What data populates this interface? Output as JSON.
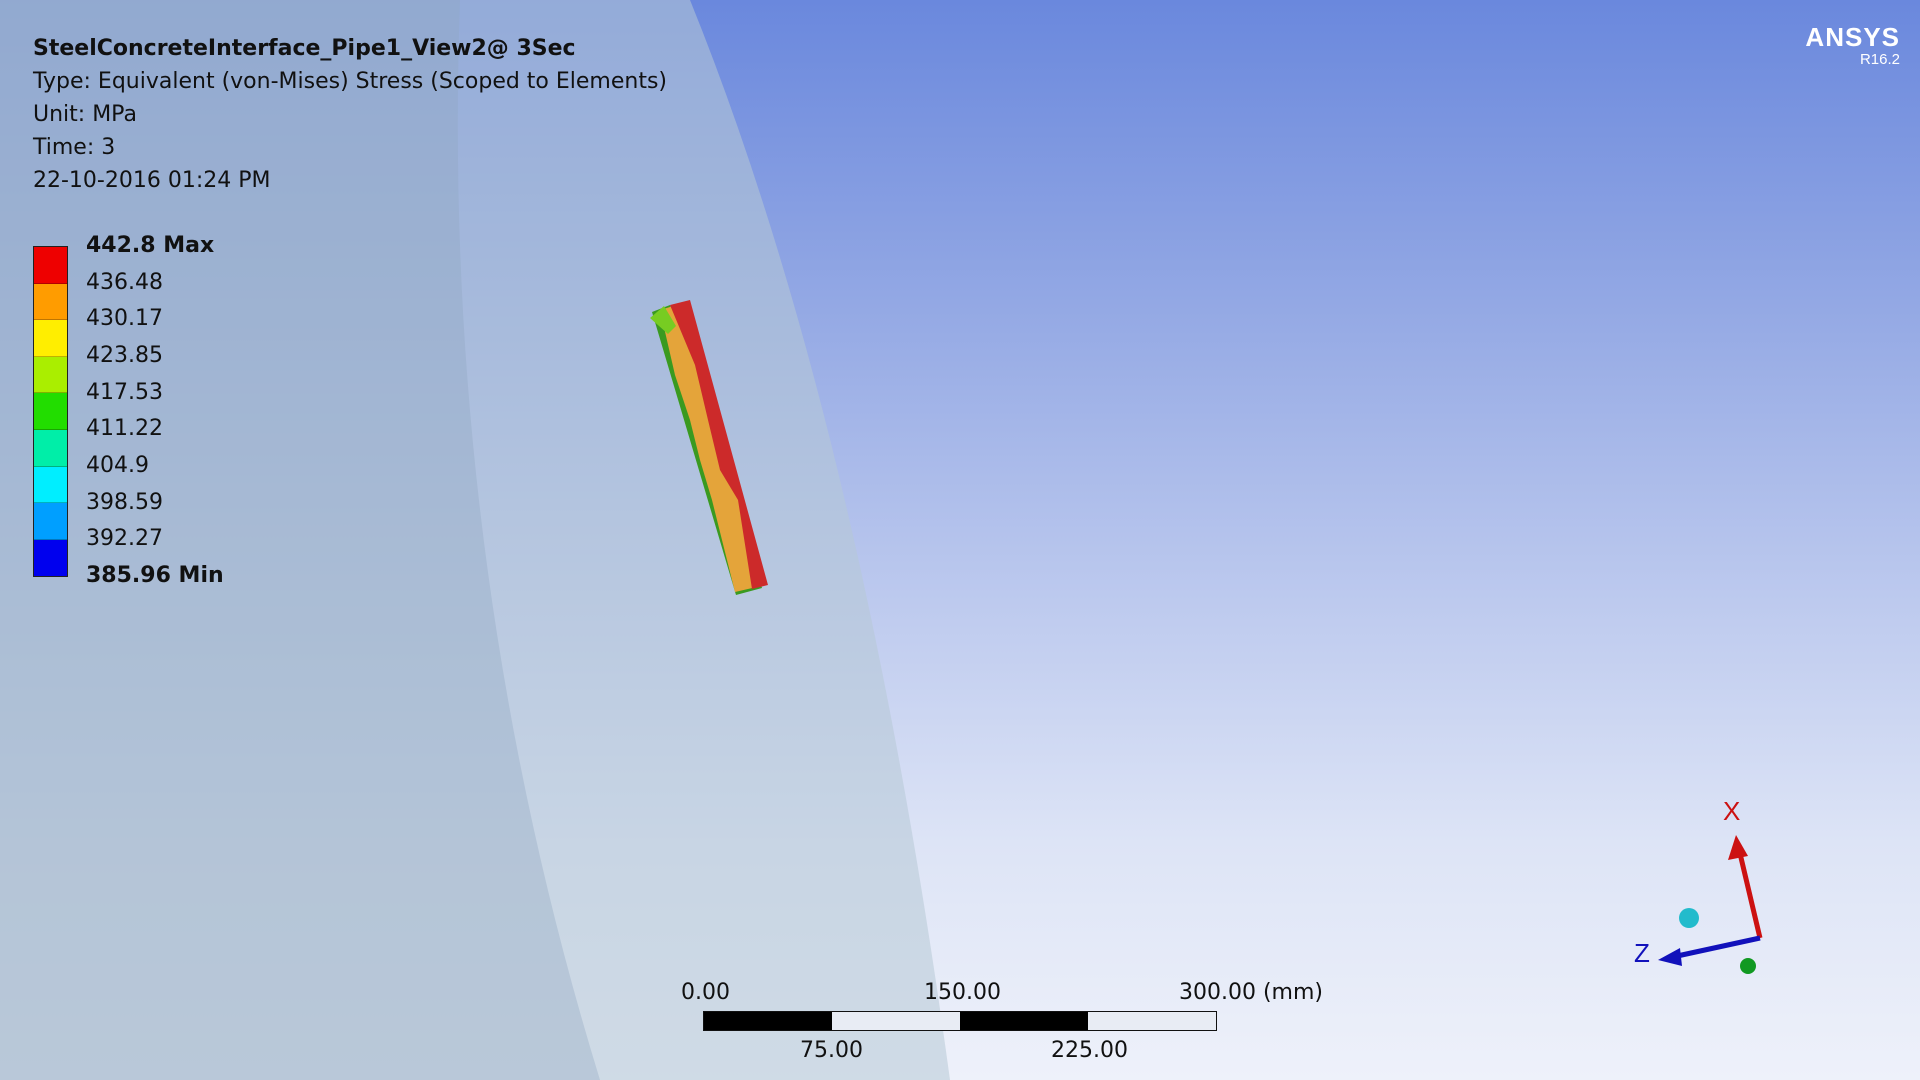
{
  "annotation": {
    "title": "SteelConcreteInterface_Pipe1_View2@ 3Sec",
    "type": "Type: Equivalent (von-Mises) Stress (Scoped to Elements)",
    "unit": "Unit: MPa",
    "time": "Time: 3",
    "date": "22-10-2016 01:24 PM"
  },
  "legend": {
    "max_label": "442.8 Max",
    "min_label": "385.96 Min",
    "levels": [
      "436.48",
      "430.17",
      "423.85",
      "417.53",
      "411.22",
      "404.9",
      "398.59",
      "392.27"
    ],
    "colors": [
      "#ee0000",
      "#ff9c00",
      "#ffee00",
      "#aaee00",
      "#22dd00",
      "#00eea8",
      "#00eeff",
      "#009fff",
      "#0000ee"
    ]
  },
  "logo": {
    "brand": "ANSYS",
    "version": "R16.2"
  },
  "scale_bar": {
    "label_0": "0.00",
    "label_150": "150.00",
    "label_300": "300.00 (mm)",
    "label_75": "75.00",
    "label_225": "225.00"
  },
  "triad": {
    "x_label": "X",
    "z_label": "Z",
    "x_color": "#cc1111",
    "z_color": "#1111bb",
    "y_color": "#119922",
    "ball_color": "#22bbcc"
  }
}
